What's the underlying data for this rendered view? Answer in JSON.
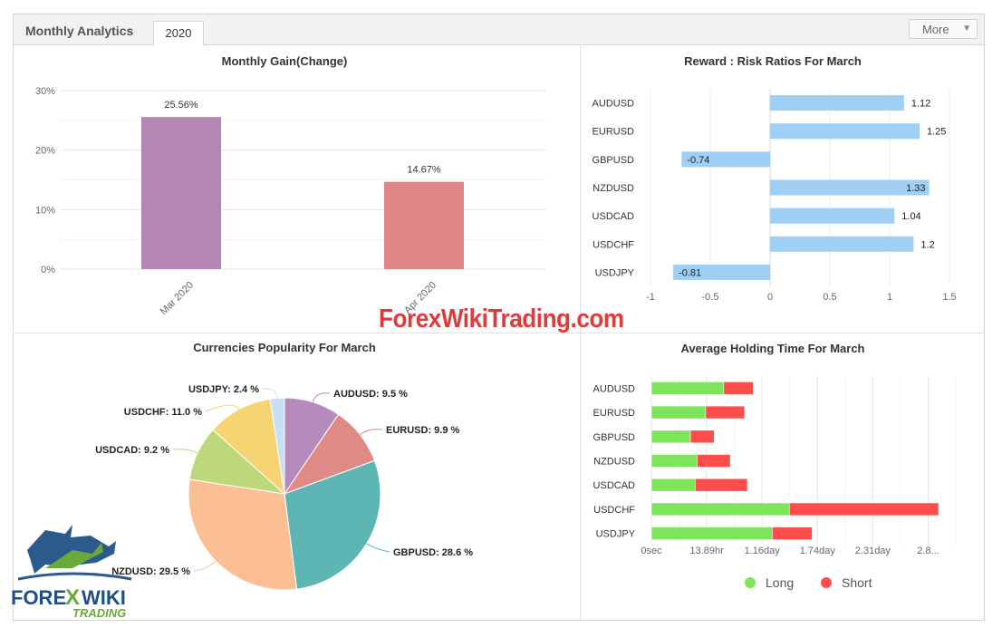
{
  "header": {
    "title": "Monthly Analytics",
    "tab": "2020",
    "more_label": "More"
  },
  "watermark": "ForexWikiTrading.com",
  "logo": {
    "word1": "FORE",
    "word2": "WIKI",
    "x_letter": "X",
    "sub": "TRADING"
  },
  "charts": {
    "gain": {
      "title": "Monthly Gain(Change)"
    },
    "rr": {
      "title": "Reward : Risk Ratios For March"
    },
    "pop": {
      "title": "Currencies Popularity For March"
    },
    "hold": {
      "title": "Average Holding Time For March"
    }
  },
  "chart_data": [
    {
      "type": "bar",
      "title": "Monthly Gain(Change)",
      "categories": [
        "Mar 2020",
        "Apr 2020"
      ],
      "values": [
        25.56,
        14.67
      ],
      "value_labels": [
        "25.56%",
        "14.67%"
      ],
      "ylim": [
        0,
        30
      ],
      "yticks": [
        0,
        10,
        20,
        30
      ],
      "ytick_labels": [
        "0%",
        "10%",
        "20%",
        "30%"
      ],
      "colors": [
        "#b486b4",
        "#e08686"
      ],
      "grid": true
    },
    {
      "type": "bar",
      "orientation": "horizontal",
      "title": "Reward : Risk Ratios For March",
      "categories": [
        "AUDUSD",
        "EURUSD",
        "GBPUSD",
        "NZDUSD",
        "USDCAD",
        "USDCHF",
        "USDJPY"
      ],
      "values": [
        1.12,
        1.25,
        -0.74,
        1.33,
        1.04,
        1.2,
        -0.81
      ],
      "value_labels": [
        "1.12",
        "1.25",
        "-0.74",
        "1.33",
        "1.04",
        "1.2",
        "-0.81"
      ],
      "xlim": [
        -1,
        1.5
      ],
      "xticks": [
        -1,
        -0.5,
        0,
        0.5,
        1,
        1.5
      ],
      "xtick_labels": [
        "-1",
        "-0.5",
        "0",
        "0.5",
        "1",
        "1.5"
      ],
      "color": "#9fcff5"
    },
    {
      "type": "pie",
      "title": "Currencies Popularity For March",
      "slices": [
        {
          "label": "AUDUSD: 9.5 %",
          "value": 9.5,
          "color": "#b48bbb"
        },
        {
          "label": "EURUSD: 9.9 %",
          "value": 9.9,
          "color": "#e08a85"
        },
        {
          "label": "GBPUSD: 28.6 %",
          "value": 28.6,
          "color": "#5db5b4"
        },
        {
          "label": "NZDUSD: 29.5 %",
          "value": 29.5,
          "color": "#fcbf93"
        },
        {
          "label": "USDCAD: 9.2 %",
          "value": 9.2,
          "color": "#bdd87a"
        },
        {
          "label": "USDCHF: 11.0 %",
          "value": 11.0,
          "color": "#f5d471"
        },
        {
          "label": "USDJPY: 2.4 %",
          "value": 2.4,
          "color": "#c7e0f3"
        }
      ]
    },
    {
      "type": "bar",
      "orientation": "horizontal",
      "stacked": true,
      "title": "Average Holding Time For March",
      "categories": [
        "AUDUSD",
        "EURUSD",
        "GBPUSD",
        "NZDUSD",
        "USDCAD",
        "USDCHF",
        "USDJPY"
      ],
      "series": [
        {
          "name": "Long",
          "color": "#7ee55a",
          "values": [
            0.76,
            0.57,
            0.41,
            0.48,
            0.46,
            1.45,
            1.27
          ]
        },
        {
          "name": "Short",
          "color": "#ff4d4d",
          "values": [
            0.31,
            0.41,
            0.25,
            0.35,
            0.55,
            1.57,
            0.42
          ]
        }
      ],
      "xtick_labels": [
        "0sec",
        "13.89hr",
        "1.16day",
        "1.74day",
        "2.31day",
        "2.8..."
      ],
      "xlim": [
        0,
        3.2
      ],
      "legend": "bottom"
    }
  ]
}
